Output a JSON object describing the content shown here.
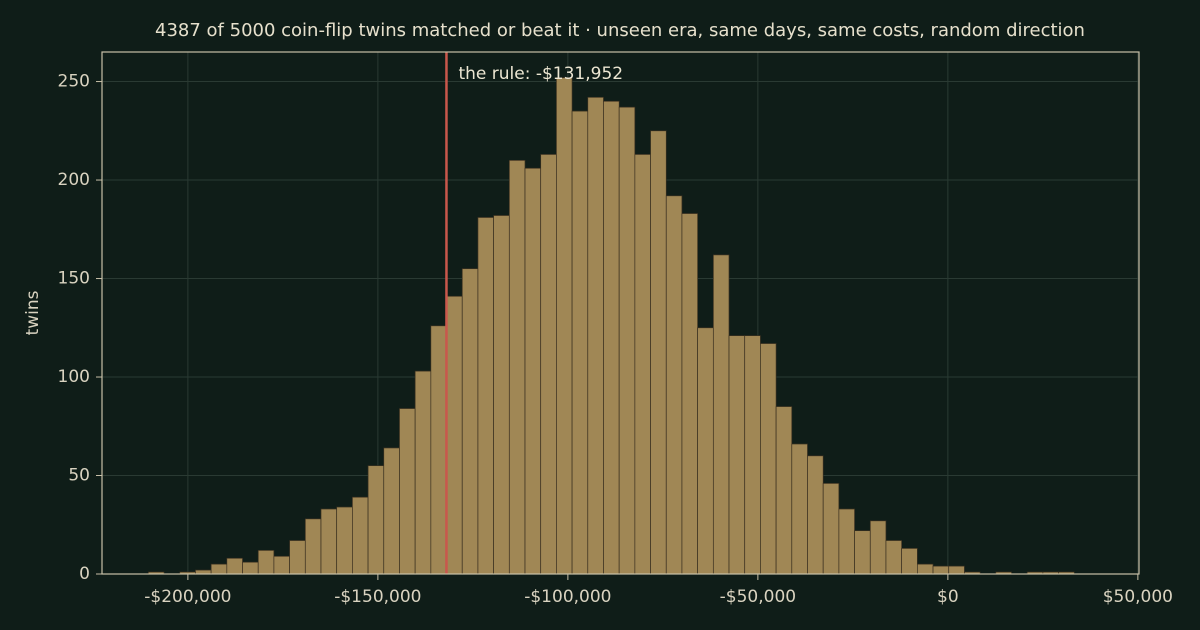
{
  "chart_data": {
    "type": "histogram",
    "title": "4387 of 5000 coin-flip twins matched or beat it  ·  unseen era, same days, same costs, random direction",
    "ylabel": "twins",
    "bins": [
      -210400,
      -206270,
      -202140,
      -198010,
      -193880,
      -189750,
      -185620,
      -181490,
      -177360,
      -173230,
      -169100,
      -164970,
      -160840,
      -156710,
      -152580,
      -148450,
      -144320,
      -140190,
      -136060,
      -131930,
      -127800,
      -123670,
      -119540,
      -115410,
      -111280,
      -107150,
      -103020,
      -98890,
      -94760,
      -90630,
      -86500,
      -82370,
      -78240,
      -74110,
      -69980,
      -65850,
      -61720,
      -57590,
      -53460,
      -49330,
      -45200,
      -41070,
      -36940,
      -32810,
      -28680,
      -24550,
      -20420,
      -16290,
      -12160,
      -8030,
      -3900,
      230,
      4360,
      8490,
      12620,
      16750,
      20880,
      25010,
      29140,
      33270,
      37400
    ],
    "values": [
      1,
      0,
      1,
      2,
      5,
      8,
      6,
      12,
      9,
      17,
      28,
      33,
      34,
      39,
      55,
      64,
      84,
      103,
      126,
      141,
      155,
      181,
      182,
      210,
      206,
      213,
      252,
      235,
      242,
      240,
      237,
      213,
      225,
      192,
      183,
      125,
      162,
      121,
      121,
      117,
      85,
      66,
      60,
      46,
      33,
      22,
      27,
      17,
      13,
      5,
      4,
      4,
      1,
      0,
      1,
      0,
      1,
      1,
      1,
      0
    ],
    "color": "#a08755",
    "rule": {
      "value": -131952,
      "label": "the rule: -$131,952",
      "color": "#c9574c"
    },
    "xlim": [
      -222600,
      50300
    ],
    "xticks": [
      {
        "value": -200000,
        "label": "-$200,000"
      },
      {
        "value": -150000,
        "label": "-$150,000"
      },
      {
        "value": -100000,
        "label": "-$100,000"
      },
      {
        "value": -50000,
        "label": "-$50,000"
      },
      {
        "value": 0,
        "label": "$0"
      },
      {
        "value": 50000,
        "label": "$50,000"
      }
    ],
    "ylim": [
      0,
      265
    ],
    "yticks": [
      0,
      50,
      100,
      150,
      200,
      250
    ],
    "grid": true
  }
}
